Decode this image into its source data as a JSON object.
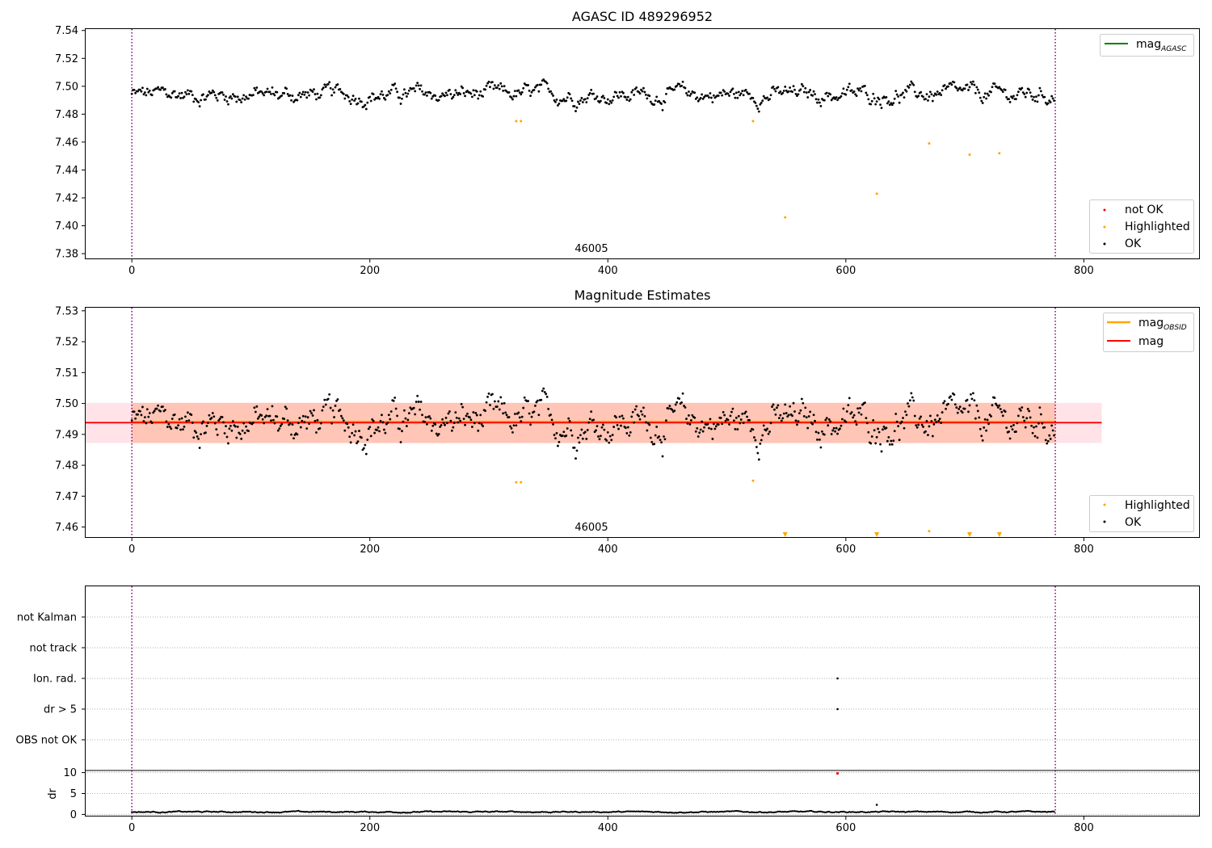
{
  "chart_data": [
    {
      "type": "scatter",
      "title": "AGASC ID 489296952",
      "xlim": [
        -39.5,
        897.5
      ],
      "ylim": [
        7.376,
        7.541
      ],
      "xticks": [
        "0",
        "200",
        "400",
        "600",
        "800"
      ],
      "yticks": [
        "7.38",
        "7.40",
        "7.42",
        "7.44",
        "7.46",
        "7.48",
        "7.50",
        "7.52",
        "7.54"
      ],
      "obsid_label": "46005",
      "obsid_boundaries": [
        0,
        776
      ],
      "series": [
        {
          "name": "mag_AGASC",
          "color": "#008000",
          "kind": "line"
        },
        {
          "name": "not OK",
          "color": "#ff0000",
          "kind": "points",
          "points": []
        },
        {
          "name": "Highlighted",
          "color": "#ffa500",
          "kind": "points",
          "points": [
            [
              323,
              7.475
            ],
            [
              327,
              7.475
            ],
            [
              522,
              7.475
            ],
            [
              549,
              7.406
            ],
            [
              626,
              7.423
            ],
            [
              670,
              7.459
            ],
            [
              704,
              7.451
            ],
            [
              729,
              7.452
            ]
          ]
        },
        {
          "name": "OK",
          "color": "#000000",
          "kind": "points",
          "x_range": [
            0,
            775
          ],
          "center": 7.494,
          "spread": 0.008
        }
      ],
      "legend_upper": [
        {
          "label": "mag",
          "sub": "AGASC",
          "color": "#008000"
        }
      ],
      "legend_lower": [
        {
          "label": "not OK",
          "color": "#ff0000"
        },
        {
          "label": "Highlighted",
          "color": "#ffa500"
        },
        {
          "label": "OK",
          "color": "#000000"
        }
      ]
    },
    {
      "type": "scatter",
      "title": "Magnitude Estimates",
      "xlim": [
        -39.5,
        897.5
      ],
      "ylim": [
        7.4565,
        7.531
      ],
      "xticks": [
        "0",
        "200",
        "400",
        "600",
        "800"
      ],
      "yticks": [
        "7.46",
        "7.47",
        "7.48",
        "7.49",
        "7.50",
        "7.51",
        "7.52",
        "7.53"
      ],
      "obsid_label": "46005",
      "mag": 7.4938,
      "mag_band": [
        7.4872,
        7.5002
      ],
      "mag_obsid": 7.4938,
      "mag_obsid_band": [
        7.4872,
        7.5002
      ],
      "highlighted_points": [
        [
          323,
          7.4745
        ],
        [
          327,
          7.4745
        ],
        [
          522,
          7.475
        ],
        [
          670,
          7.4587
        ]
      ],
      "highlighted_offscale_x": [
        549,
        626,
        704,
        729
      ],
      "legend_upper": [
        {
          "label": "mag",
          "sub": "OBSID",
          "color": "#ffa500"
        },
        {
          "label": "mag",
          "sub": "",
          "color": "#ff0000"
        }
      ],
      "legend_lower": [
        {
          "label": "Highlighted",
          "color": "#ffa500"
        },
        {
          "label": "OK",
          "color": "#000000"
        }
      ]
    },
    {
      "type": "scatter",
      "title": "",
      "xlim": [
        -39.5,
        897.5
      ],
      "xticks": [
        "0",
        "200",
        "400",
        "600",
        "800"
      ],
      "flag_categories": [
        "not Kalman",
        "not track",
        "Ion. rad.",
        "dr > 5",
        "OBS not OK"
      ],
      "flag_points": [
        {
          "category": "Ion. rad.",
          "x": 593
        },
        {
          "category": "dr > 5",
          "x": 593
        }
      ],
      "dr_ylabel": "dr",
      "dr_yticks": [
        "0",
        "5",
        "10"
      ],
      "dr_ylim": [
        -0.5,
        10.5
      ],
      "dr_outlier": {
        "x": 593,
        "value": 9.8,
        "color": "#ff0000"
      },
      "dr_spike": {
        "x": 626,
        "value": 2.3
      }
    }
  ]
}
